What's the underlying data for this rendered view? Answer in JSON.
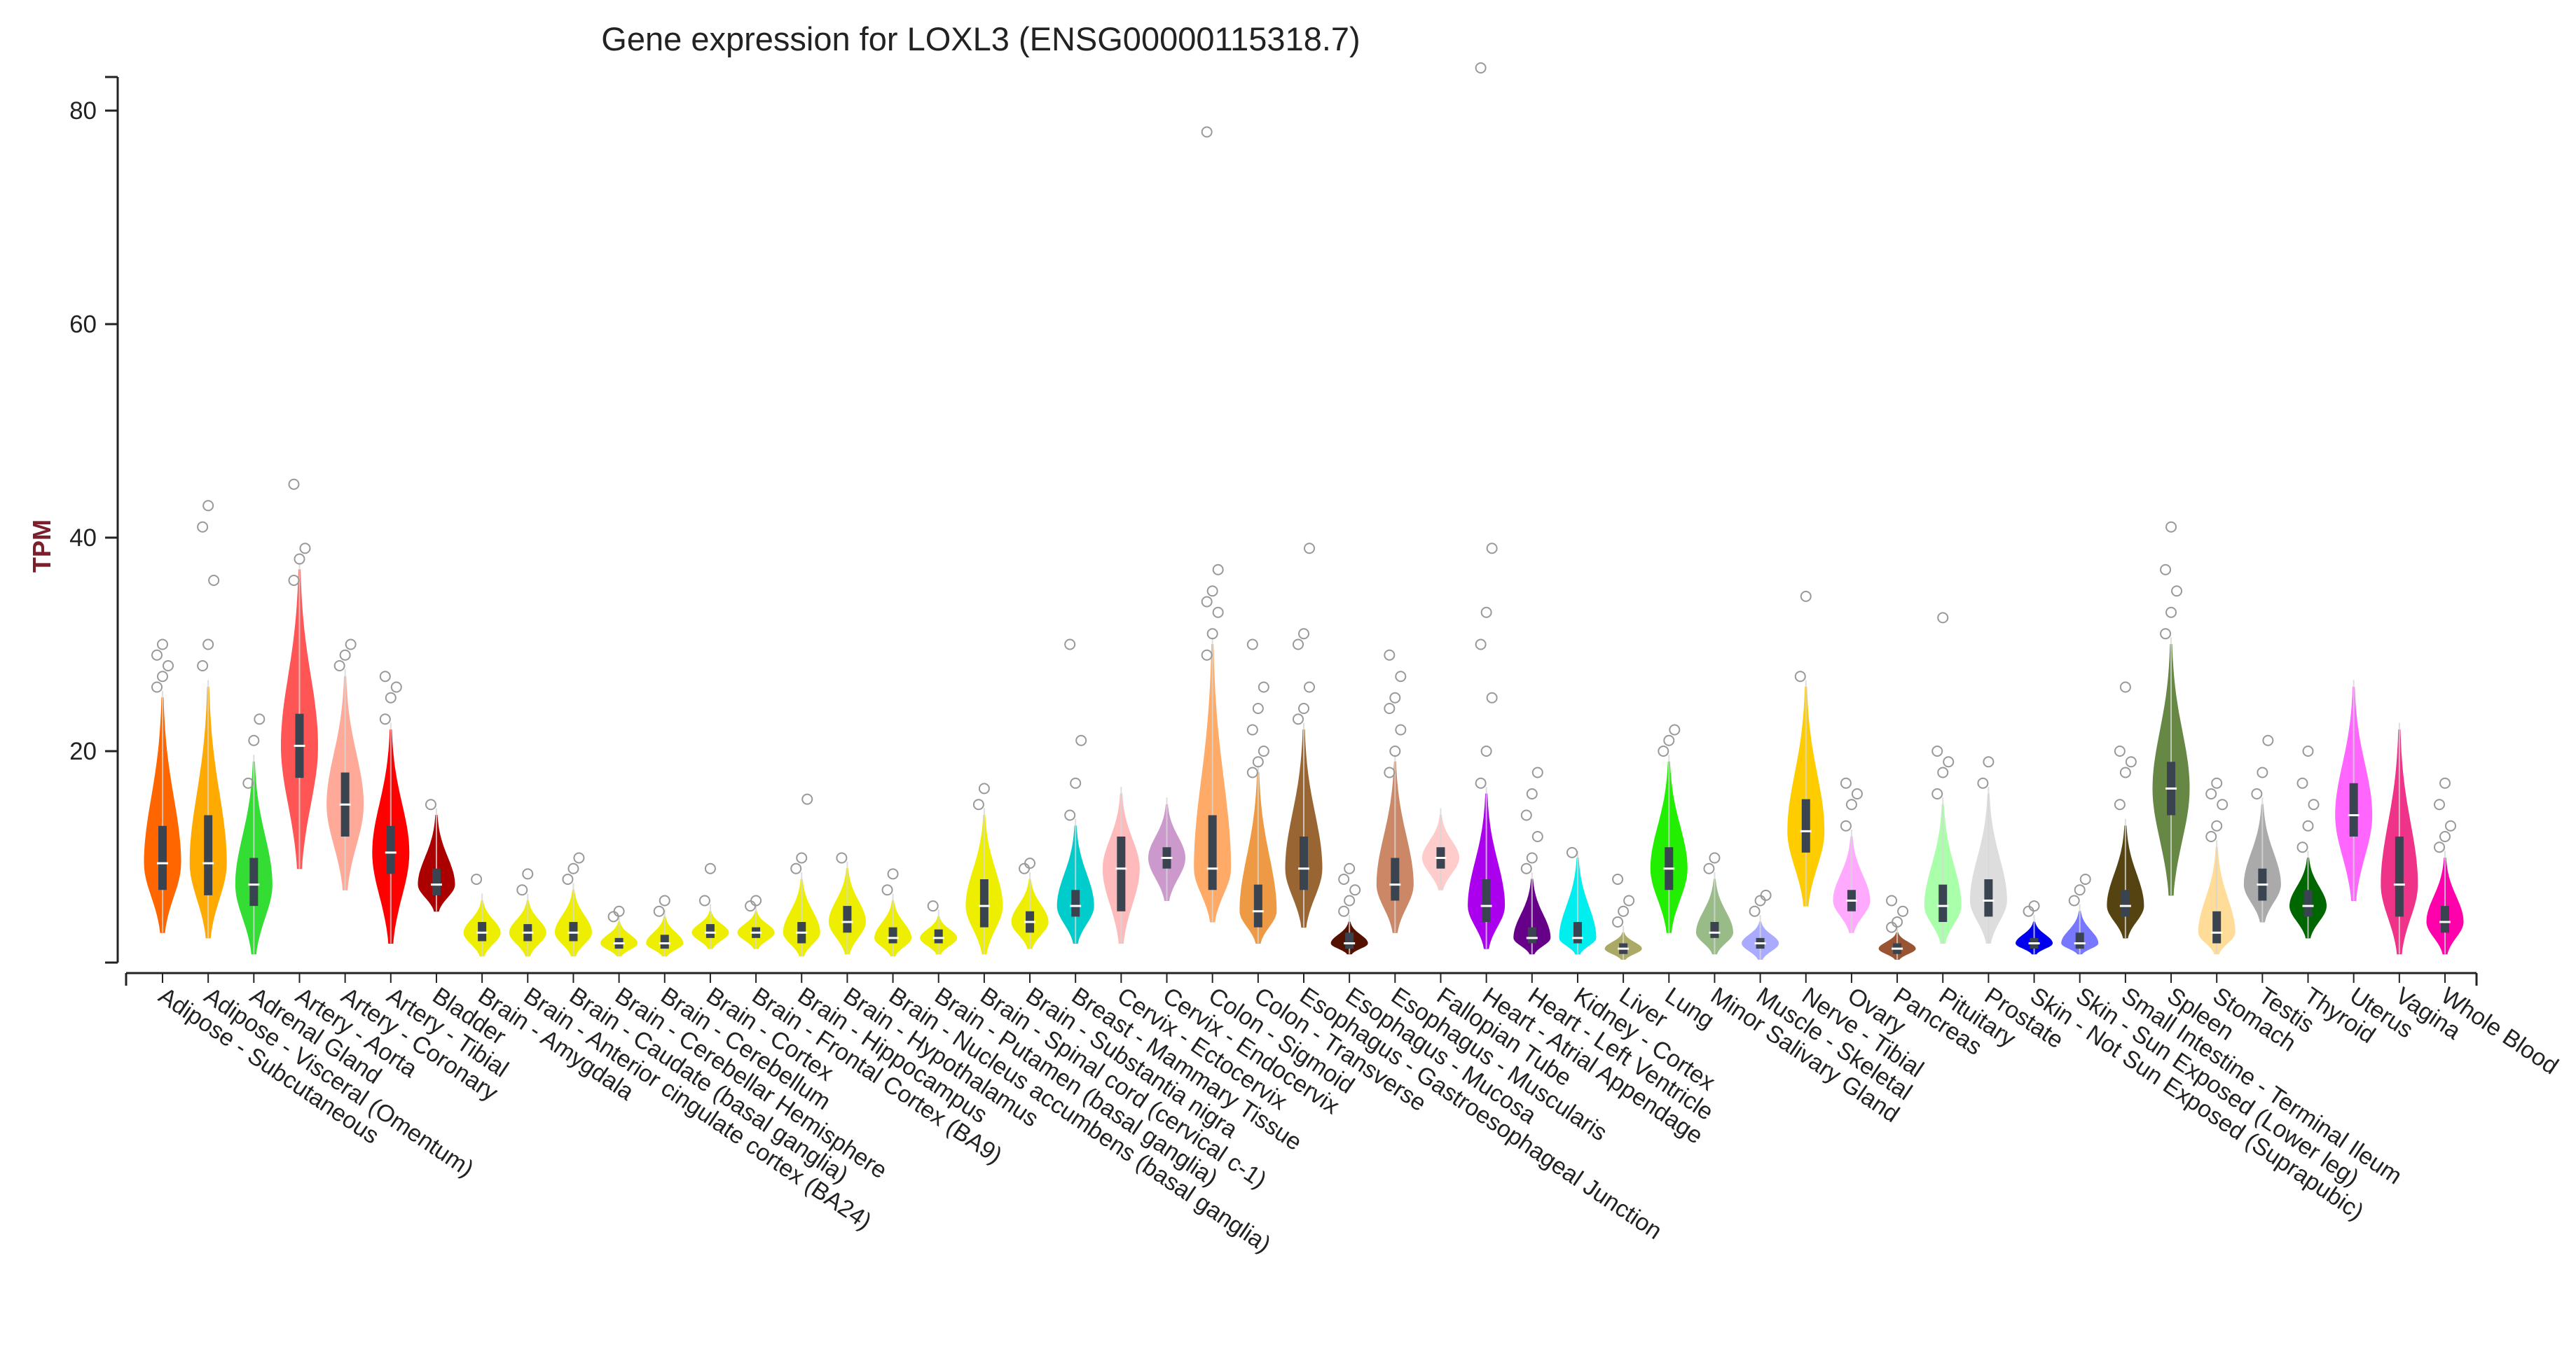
{
  "chart_data": {
    "type": "violin",
    "title": "Gene expression for LOXL3 (ENSG00000115318.7)",
    "ylabel": "TPM",
    "xlabel": "",
    "ylim": [
      0,
      85
    ],
    "yticks": [
      20,
      40,
      60,
      80
    ],
    "grid": false,
    "series": [
      {
        "name": "Adipose - Subcutaneous",
        "color": "#ff6600",
        "median": 9.5,
        "q1": 7,
        "q3": 13,
        "min": 3,
        "max": 25,
        "outliers": [
          26,
          27,
          28,
          29,
          30
        ]
      },
      {
        "name": "Adipose - Visceral (Omentum)",
        "color": "#ffaa00",
        "median": 9.5,
        "q1": 6.5,
        "q3": 14,
        "min": 2.5,
        "max": 26,
        "outliers": [
          28,
          30,
          36,
          41,
          43
        ]
      },
      {
        "name": "Adrenal Gland",
        "color": "#33dd33",
        "median": 7.5,
        "q1": 5.5,
        "q3": 10,
        "min": 1,
        "max": 19,
        "outliers": [
          17,
          21,
          23
        ]
      },
      {
        "name": "Artery - Aorta",
        "color": "#ff5555",
        "median": 20.5,
        "q1": 17.5,
        "q3": 23.5,
        "min": 9,
        "max": 37,
        "outliers": [
          36,
          38,
          39,
          45
        ]
      },
      {
        "name": "Artery - Coronary",
        "color": "#ffaa99",
        "median": 15,
        "q1": 12,
        "q3": 18,
        "min": 7,
        "max": 27,
        "outliers": [
          28,
          29,
          30
        ]
      },
      {
        "name": "Artery - Tibial",
        "color": "#ff0000",
        "median": 10.5,
        "q1": 8.5,
        "q3": 13,
        "min": 2,
        "max": 22,
        "outliers": [
          23,
          25,
          26,
          27
        ]
      },
      {
        "name": "Bladder",
        "color": "#aa0000",
        "median": 7.5,
        "q1": 6.5,
        "q3": 9,
        "min": 5,
        "max": 14,
        "outliers": [
          15
        ]
      },
      {
        "name": "Brain - Amygdala",
        "color": "#eeee00",
        "median": 3,
        "q1": 2.2,
        "q3": 4,
        "min": 0.8,
        "max": 6,
        "outliers": [
          8
        ]
      },
      {
        "name": "Brain - Anterior cingulate cortex (BA24)",
        "color": "#eeee00",
        "median": 3,
        "q1": 2.2,
        "q3": 3.8,
        "min": 0.8,
        "max": 6,
        "outliers": [
          7,
          8.5
        ]
      },
      {
        "name": "Brain - Caudate (basal ganglia)",
        "color": "#eeee00",
        "median": 3,
        "q1": 2.2,
        "q3": 4,
        "min": 0.8,
        "max": 7,
        "outliers": [
          8,
          9,
          10
        ]
      },
      {
        "name": "Brain - Cerebellar Hemisphere",
        "color": "#eeee00",
        "median": 2,
        "q1": 1.5,
        "q3": 2.5,
        "min": 0.8,
        "max": 4,
        "outliers": [
          4.5,
          5
        ]
      },
      {
        "name": "Brain - Cerebellum",
        "color": "#eeee00",
        "median": 2,
        "q1": 1.5,
        "q3": 2.8,
        "min": 0.8,
        "max": 4.5,
        "outliers": [
          5,
          6
        ]
      },
      {
        "name": "Brain - Cortex",
        "color": "#eeee00",
        "median": 3,
        "q1": 2.5,
        "q3": 3.8,
        "min": 1.5,
        "max": 5,
        "outliers": [
          6,
          9
        ]
      },
      {
        "name": "Brain - Frontal Cortex (BA9)",
        "color": "#eeee00",
        "median": 3,
        "q1": 2.5,
        "q3": 3.5,
        "min": 1.5,
        "max": 5,
        "outliers": [
          5.5,
          6
        ]
      },
      {
        "name": "Brain - Hippocampus",
        "color": "#eeee00",
        "median": 3,
        "q1": 2,
        "q3": 4,
        "min": 0.8,
        "max": 8,
        "outliers": [
          9,
          10,
          15.5
        ]
      },
      {
        "name": "Brain - Hypothalamus",
        "color": "#eeee00",
        "median": 4,
        "q1": 3,
        "q3": 5.5,
        "min": 1,
        "max": 9,
        "outliers": [
          10
        ]
      },
      {
        "name": "Brain - Nucleus accumbens (basal ganglia)",
        "color": "#eeee00",
        "median": 2.5,
        "q1": 2,
        "q3": 3.5,
        "min": 0.8,
        "max": 6,
        "outliers": [
          7,
          8.5
        ]
      },
      {
        "name": "Brain - Putamen (basal ganglia)",
        "color": "#eeee00",
        "median": 2.5,
        "q1": 2,
        "q3": 3.3,
        "min": 1,
        "max": 4.5,
        "outliers": [
          5.5
        ]
      },
      {
        "name": "Brain - Spinal cord (cervical c-1)",
        "color": "#eeee00",
        "median": 5.5,
        "q1": 3.5,
        "q3": 8,
        "min": 1,
        "max": 14,
        "outliers": [
          15,
          16.5
        ]
      },
      {
        "name": "Brain - Substantia nigra",
        "color": "#eeee00",
        "median": 4,
        "q1": 3,
        "q3": 5,
        "min": 1.5,
        "max": 8,
        "outliers": [
          9,
          9.5
        ]
      },
      {
        "name": "Breast - Mammary Tissue",
        "color": "#00cccc",
        "median": 5.5,
        "q1": 4.5,
        "q3": 7,
        "min": 2,
        "max": 13,
        "outliers": [
          14,
          17,
          21,
          30
        ]
      },
      {
        "name": "Cervix - Ectocervix",
        "color": "#ffbbbb",
        "median": 9,
        "q1": 5,
        "q3": 12,
        "min": 2,
        "max": 16,
        "outliers": []
      },
      {
        "name": "Cervix - Endocervix",
        "color": "#cc99cc",
        "median": 10,
        "q1": 9,
        "q3": 11,
        "min": 6,
        "max": 15,
        "outliers": []
      },
      {
        "name": "Colon - Sigmoid",
        "color": "#ffaa66",
        "median": 9,
        "q1": 7,
        "q3": 14,
        "min": 4,
        "max": 30,
        "outliers": [
          29,
          31,
          33,
          34,
          35,
          37,
          78
        ]
      },
      {
        "name": "Colon - Transverse",
        "color": "#ee9944",
        "median": 5,
        "q1": 3.5,
        "q3": 7.5,
        "min": 2,
        "max": 18,
        "outliers": [
          18,
          19,
          20,
          22,
          24,
          26,
          30
        ]
      },
      {
        "name": "Esophagus - Gastroesophageal Junction",
        "color": "#996633",
        "median": 9,
        "q1": 7,
        "q3": 12,
        "min": 3.5,
        "max": 22,
        "outliers": [
          23,
          24,
          26,
          30,
          31,
          39
        ]
      },
      {
        "name": "Esophagus - Mucosa",
        "color": "#551100",
        "median": 2,
        "q1": 1.5,
        "q3": 3,
        "min": 1,
        "max": 4,
        "outliers": [
          5,
          6,
          7,
          8,
          9
        ]
      },
      {
        "name": "Esophagus - Muscularis",
        "color": "#cc8866",
        "median": 7.5,
        "q1": 6,
        "q3": 10,
        "min": 3,
        "max": 19,
        "outliers": [
          18,
          20,
          22,
          24,
          25,
          27,
          29
        ]
      },
      {
        "name": "Fallopian Tube",
        "color": "#ffcccc",
        "median": 10,
        "q1": 9,
        "q3": 11,
        "min": 7,
        "max": 14,
        "outliers": []
      },
      {
        "name": "Heart - Atrial Appendage",
        "color": "#aa00ee",
        "median": 5.5,
        "q1": 4,
        "q3": 8,
        "min": 1.5,
        "max": 16,
        "outliers": [
          17,
          20,
          25,
          30,
          33,
          39,
          84
        ]
      },
      {
        "name": "Heart - Left Ventricle",
        "color": "#660088",
        "median": 2.5,
        "q1": 2,
        "q3": 3.5,
        "min": 1,
        "max": 8,
        "outliers": [
          9,
          10,
          12,
          14,
          16,
          18
        ]
      },
      {
        "name": "Kidney - Cortex",
        "color": "#00eeee",
        "median": 2.5,
        "q1": 2,
        "q3": 4,
        "min": 1,
        "max": 10,
        "outliers": [
          10.5
        ]
      },
      {
        "name": "Liver",
        "color": "#aaaa66",
        "median": 1.5,
        "q1": 1,
        "q3": 2,
        "min": 0.5,
        "max": 3,
        "outliers": [
          4,
          5,
          6,
          8
        ]
      },
      {
        "name": "Lung",
        "color": "#22ee00",
        "median": 9,
        "q1": 7,
        "q3": 11,
        "min": 3,
        "max": 19,
        "outliers": [
          20,
          21,
          22
        ]
      },
      {
        "name": "Minor Salivary Gland",
        "color": "#99bb88",
        "median": 3,
        "q1": 2.5,
        "q3": 4,
        "min": 1,
        "max": 8,
        "outliers": [
          9,
          10
        ]
      },
      {
        "name": "Muscle - Skeletal",
        "color": "#aaaaff",
        "median": 2,
        "q1": 1.5,
        "q3": 2.5,
        "min": 0.5,
        "max": 4,
        "outliers": [
          5,
          6,
          6.5
        ]
      },
      {
        "name": "Nerve - Tibial",
        "color": "#ffcc00",
        "median": 12.5,
        "q1": 10.5,
        "q3": 15.5,
        "min": 5.5,
        "max": 26,
        "outliers": [
          27,
          34.5
        ]
      },
      {
        "name": "Ovary",
        "color": "#ffaaff",
        "median": 6,
        "q1": 5,
        "q3": 7,
        "min": 3,
        "max": 12,
        "outliers": [
          13,
          15,
          16,
          17
        ]
      },
      {
        "name": "Pancreas",
        "color": "#995533",
        "median": 1.5,
        "q1": 1,
        "q3": 2,
        "min": 0.5,
        "max": 3,
        "outliers": [
          3.5,
          4,
          5,
          6
        ]
      },
      {
        "name": "Pituitary",
        "color": "#aaffaa",
        "median": 5.5,
        "q1": 4,
        "q3": 7.5,
        "min": 2,
        "max": 15,
        "outliers": [
          16,
          18,
          19,
          20,
          32.5
        ]
      },
      {
        "name": "Prostate",
        "color": "#dddddd",
        "median": 6,
        "q1": 4.5,
        "q3": 8,
        "min": 2,
        "max": 16,
        "outliers": [
          17,
          19
        ]
      },
      {
        "name": "Skin - Not Sun Exposed (Suprapubic)",
        "color": "#0000ee",
        "median": 2,
        "q1": 1.5,
        "q3": 2.5,
        "min": 1,
        "max": 4,
        "outliers": [
          5,
          5.5
        ]
      },
      {
        "name": "Skin - Sun Exposed (Lower leg)",
        "color": "#7777ff",
        "median": 2,
        "q1": 1.5,
        "q3": 3,
        "min": 1,
        "max": 5,
        "outliers": [
          6,
          7,
          8
        ]
      },
      {
        "name": "Small Intestine - Terminal Ileum",
        "color": "#554411",
        "median": 5.5,
        "q1": 4.5,
        "q3": 7,
        "min": 2.5,
        "max": 13,
        "outliers": [
          15,
          18,
          19,
          20,
          26
        ]
      },
      {
        "name": "Spleen",
        "color": "#668844",
        "median": 16.5,
        "q1": 14,
        "q3": 19,
        "min": 6.5,
        "max": 30,
        "outliers": [
          31,
          33,
          35,
          37,
          41
        ]
      },
      {
        "name": "Stomach",
        "color": "#ffdd99",
        "median": 3,
        "q1": 2,
        "q3": 5,
        "min": 1,
        "max": 11,
        "outliers": [
          12,
          13,
          15,
          16,
          17
        ]
      },
      {
        "name": "Testis",
        "color": "#aaaaaa",
        "median": 7.5,
        "q1": 6,
        "q3": 9,
        "min": 4,
        "max": 15,
        "outliers": [
          16,
          18,
          21
        ]
      },
      {
        "name": "Thyroid",
        "color": "#006600",
        "median": 5.5,
        "q1": 4.5,
        "q3": 7,
        "min": 2.5,
        "max": 10,
        "outliers": [
          11,
          13,
          15,
          17,
          20
        ]
      },
      {
        "name": "Uterus",
        "color": "#ff66ff",
        "median": 14,
        "q1": 12,
        "q3": 17,
        "min": 6,
        "max": 26,
        "outliers": []
      },
      {
        "name": "Vagina",
        "color": "#ee3388",
        "median": 7.5,
        "q1": 4.5,
        "q3": 12,
        "min": 1,
        "max": 22,
        "outliers": []
      },
      {
        "name": "Whole Blood",
        "color": "#ff00aa",
        "median": 4,
        "q1": 3,
        "q3": 5.5,
        "min": 1,
        "max": 10,
        "outliers": [
          11,
          12,
          13,
          15,
          17
        ]
      }
    ]
  }
}
